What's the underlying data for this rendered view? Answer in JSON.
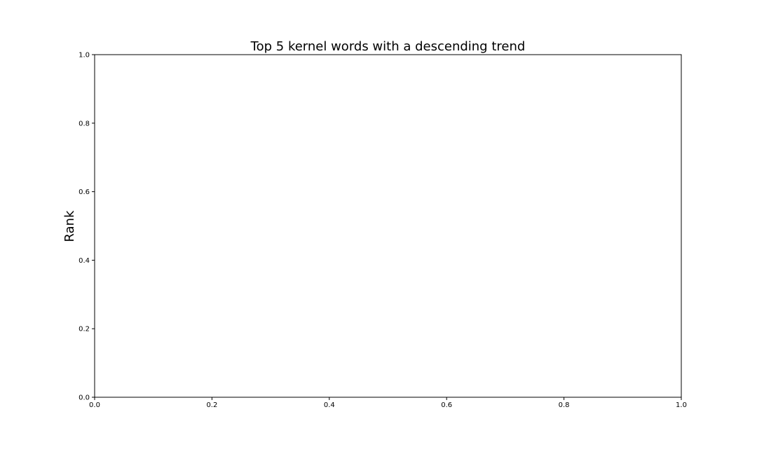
{
  "chart_data": {
    "type": "line",
    "title": "Top 5 kernel words with a descending trend",
    "xlabel": "",
    "ylabel": "Rank",
    "xlim": [
      0.0,
      1.0
    ],
    "ylim": [
      0.0,
      1.0
    ],
    "x_ticks": [
      "0.0",
      "0.2",
      "0.4",
      "0.6",
      "0.8",
      "1.0"
    ],
    "y_ticks": [
      "0.0",
      "0.2",
      "0.4",
      "0.6",
      "0.8",
      "1.0"
    ],
    "grid": false,
    "series": []
  }
}
